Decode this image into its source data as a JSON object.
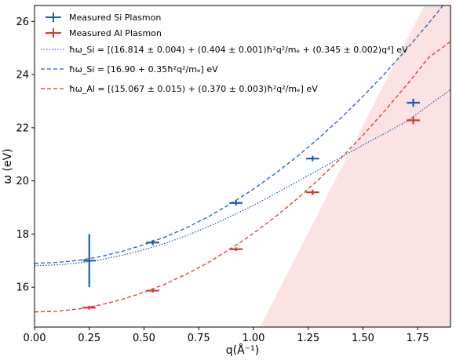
{
  "chart_data": {
    "type": "scatter",
    "xlabel": "q(Å⁻¹)",
    "ylabel": "ω (eV)",
    "xlim": [
      0.0,
      1.9
    ],
    "ylim": [
      14.5,
      26.6
    ],
    "xticks": [
      0.0,
      0.25,
      0.5,
      0.75,
      1.0,
      1.25,
      1.5,
      1.75
    ],
    "xtick_labels": [
      "0.00",
      "0.25",
      "0.50",
      "0.75",
      "1.00",
      "1.25",
      "1.50",
      "1.75"
    ],
    "yticks": [
      16,
      18,
      20,
      22,
      24,
      26
    ],
    "ytick_labels": [
      "16",
      "18",
      "20",
      "22",
      "24",
      "26"
    ],
    "legend_position": "top-left",
    "series": [
      {
        "name": "Measured Si Plasmon",
        "kind": "points",
        "color": "#1f5fb4",
        "points": [
          {
            "x": 0.25,
            "y": 17.0,
            "xerr": 0.03,
            "yerr": 1.0
          },
          {
            "x": 0.54,
            "y": 17.68,
            "xerr": 0.03,
            "yerr": 0.1
          },
          {
            "x": 0.92,
            "y": 19.17,
            "xerr": 0.03,
            "yerr": 0.1
          },
          {
            "x": 1.27,
            "y": 20.84,
            "xerr": 0.03,
            "yerr": 0.1
          },
          {
            "x": 1.73,
            "y": 22.94,
            "xerr": 0.03,
            "yerr": 0.15
          }
        ]
      },
      {
        "name": "Measured Al Plasmon",
        "kind": "points",
        "color": "#d63a2a",
        "points": [
          {
            "x": 0.25,
            "y": 15.23,
            "xerr": 0.03,
            "yerr": 0.07
          },
          {
            "x": 0.54,
            "y": 15.87,
            "xerr": 0.03,
            "yerr": 0.07
          },
          {
            "x": 0.92,
            "y": 17.43,
            "xerr": 0.03,
            "yerr": 0.07
          },
          {
            "x": 1.27,
            "y": 19.57,
            "xerr": 0.03,
            "yerr": 0.1
          },
          {
            "x": 1.73,
            "y": 22.28,
            "xerr": 0.03,
            "yerr": 0.15
          }
        ]
      },
      {
        "name": "ħω_Si = [(16.814 ± 0.004) + (0.404 ± 0.001)ħ²q²/mₑ + (0.345 ± 0.002)q⁴] eV",
        "kind": "fit-dotted",
        "color": "#1f5fb4",
        "x": [
          0.0,
          0.1,
          0.2,
          0.3,
          0.4,
          0.5,
          0.6,
          0.7,
          0.8,
          0.9,
          1.0,
          1.1,
          1.2,
          1.3,
          1.4,
          1.5,
          1.6,
          1.7,
          1.8,
          1.9
        ],
        "y": [
          16.81,
          16.84,
          16.91,
          17.03,
          17.2,
          17.41,
          17.66,
          17.96,
          18.3,
          18.68,
          19.08,
          19.52,
          19.97,
          20.43,
          20.89,
          21.35,
          21.79,
          22.24,
          22.84,
          23.43
        ]
      },
      {
        "name": "ħω_Si = [16.90 + 0.35ħ²q²/mₑ] eV",
        "kind": "fit-dashed",
        "color": "#1f5fb4",
        "x": [
          0.0,
          0.1,
          0.2,
          0.3,
          0.4,
          0.5,
          0.6,
          0.7,
          0.8,
          0.9,
          1.0,
          1.1,
          1.2,
          1.3,
          1.4,
          1.5,
          1.6,
          1.7,
          1.8,
          1.9
        ],
        "y": [
          16.9,
          16.93,
          17.01,
          17.15,
          17.35,
          17.6,
          17.9,
          18.26,
          18.68,
          19.16,
          19.69,
          20.28,
          20.92,
          21.62,
          22.37,
          23.18,
          24.04,
          24.96,
          25.93,
          26.95
        ]
      },
      {
        "name": "ħω_Al = [(15.067 ± 0.015) + (0.370 ± 0.003)ħ²q²/mₑ] eV",
        "kind": "fit-dashed",
        "color": "#d63a2a",
        "x": [
          0.0,
          0.1,
          0.2,
          0.3,
          0.4,
          0.5,
          0.6,
          0.7,
          0.8,
          0.9,
          1.0,
          1.1,
          1.2,
          1.3,
          1.4,
          1.5,
          1.6,
          1.7,
          1.8,
          1.9
        ],
        "y": [
          15.07,
          15.09,
          15.18,
          15.33,
          15.54,
          15.81,
          16.13,
          16.52,
          16.96,
          17.47,
          18.03,
          18.65,
          19.33,
          20.07,
          20.86,
          21.72,
          22.64,
          23.61,
          24.64,
          25.24
        ]
      }
    ],
    "shaded_region": {
      "color": "#fbe3e3",
      "polygon": [
        [
          1.03,
          14.5
        ],
        [
          1.78,
          26.6
        ],
        [
          1.9,
          26.6
        ],
        [
          1.9,
          14.5
        ]
      ]
    }
  }
}
